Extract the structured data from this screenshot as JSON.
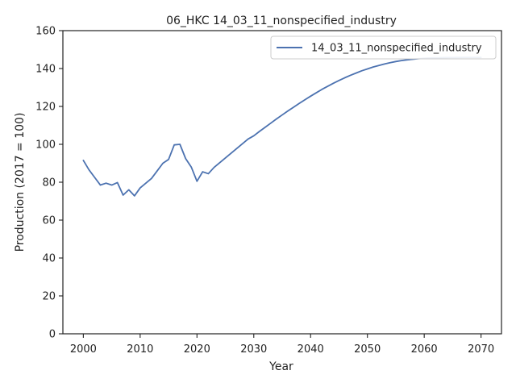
{
  "chart_data": {
    "type": "line",
    "title": "06_HKC 14_03_11_nonspecified_industry",
    "xlabel": "Year",
    "ylabel": "Production (2017 = 100)",
    "xlim": [
      1996.4,
      2073.6
    ],
    "ylim": [
      0,
      160
    ],
    "xticks": [
      2000,
      2010,
      2020,
      2030,
      2040,
      2050,
      2060,
      2070
    ],
    "yticks": [
      0,
      20,
      40,
      60,
      80,
      100,
      120,
      140,
      160
    ],
    "grid": false,
    "legend_position": "top-right",
    "series": [
      {
        "name": "14_03_11_nonspecified_industry",
        "color": "#4c72b0",
        "x": [
          2000,
          2001,
          2002,
          2003,
          2004,
          2005,
          2006,
          2007,
          2008,
          2009,
          2010,
          2011,
          2012,
          2013,
          2014,
          2015,
          2016,
          2017,
          2018,
          2019,
          2020,
          2021,
          2022,
          2023,
          2024,
          2025,
          2026,
          2027,
          2028,
          2029,
          2030,
          2031,
          2032,
          2033,
          2034,
          2035,
          2036,
          2037,
          2038,
          2039,
          2040,
          2041,
          2042,
          2043,
          2044,
          2045,
          2046,
          2047,
          2048,
          2049,
          2050,
          2051,
          2052,
          2053,
          2054,
          2055,
          2056,
          2057,
          2058,
          2059,
          2060,
          2061,
          2062,
          2063,
          2064,
          2065,
          2066,
          2067,
          2068,
          2069,
          2070
        ],
        "y": [
          91.5,
          86.5,
          82.5,
          78.5,
          79.5,
          78.5,
          79.8,
          73.2,
          76.0,
          72.8,
          77.0,
          79.5,
          82.0,
          86.0,
          90.0,
          92.0,
          99.7,
          100.0,
          92.5,
          88.0,
          80.5,
          85.5,
          84.5,
          87.8,
          90.3,
          92.8,
          95.3,
          97.8,
          100.3,
          102.8,
          104.5,
          106.8,
          109.0,
          111.2,
          113.4,
          115.5,
          117.6,
          119.6,
          121.6,
          123.5,
          125.4,
          127.2,
          129.0,
          130.6,
          132.2,
          133.7,
          135.1,
          136.4,
          137.6,
          138.8,
          139.8,
          140.8,
          141.6,
          142.4,
          143.1,
          143.7,
          144.2,
          144.6,
          144.9,
          145.2,
          145.4,
          145.55,
          145.65,
          145.72,
          145.77,
          145.8,
          145.82,
          145.84,
          145.85,
          145.86,
          145.86
        ]
      }
    ]
  }
}
